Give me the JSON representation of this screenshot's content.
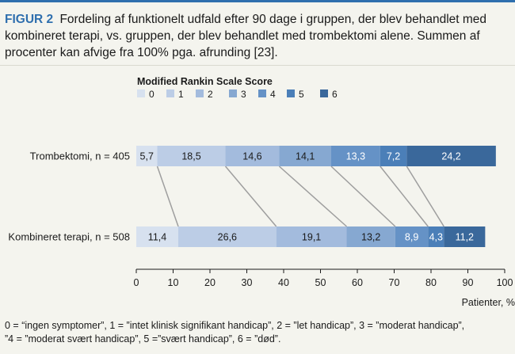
{
  "figure": {
    "label": "FIGUR 2",
    "caption": "Fordeling af funktionelt udfald efter 90 dage i gruppen, der blev behandlet med kombineret terapi, vs. gruppen, der blev behandlet med trombektomi alene. Summen af procenter kan afvige fra 100% pga. afrunding [23]."
  },
  "footnote": {
    "line1": "0 = “ingen symptomer”, 1 = ”intet klinisk signifikant handicap”, 2 = ”let handicap”, 3 = ”moderat handicap”,",
    "line2": "”4 = ”moderat svært handicap”, 5 =”svært handicap”, 6 = ”død”."
  },
  "colors": [
    "#d7e1ef",
    "#bccde6",
    "#a3bbdd",
    "#86a8d1",
    "#6592c6",
    "#4b7fb8",
    "#3a689b"
  ],
  "chart_data": {
    "type": "bar",
    "orientation": "horizontal",
    "stacked": true,
    "legend_title": "Modified Rankin Scale Score",
    "legend_position": "top",
    "series_names": [
      "0",
      "1",
      "2",
      "3",
      "4",
      "5",
      "6"
    ],
    "categories": [
      "Trombektomi, n = 405",
      "Kombineret terapi, n = 508"
    ],
    "rows": [
      {
        "label": "Trombektomi, n = 405",
        "values": [
          5.7,
          18.5,
          14.6,
          14.1,
          13.3,
          7.2,
          24.2
        ],
        "value_labels": [
          "5,7",
          "18,5",
          "14,6",
          "14,1",
          "13,3",
          "7,2",
          "24,2"
        ]
      },
      {
        "label": "Kombineret terapi, n = 508",
        "values": [
          11.4,
          26.6,
          19.1,
          13.2,
          8.9,
          4.3,
          11.2
        ],
        "value_labels": [
          "11,4",
          "26,6",
          "19,1",
          "13,2",
          "8,9",
          "4,3",
          "11,2"
        ]
      }
    ],
    "xlim": [
      0,
      100
    ],
    "xticks": [
      "0",
      "10",
      "20",
      "30",
      "40",
      "50",
      "60",
      "70",
      "80",
      "90",
      "100"
    ],
    "xlabel": "Patienter, %",
    "connector_lines": true
  }
}
